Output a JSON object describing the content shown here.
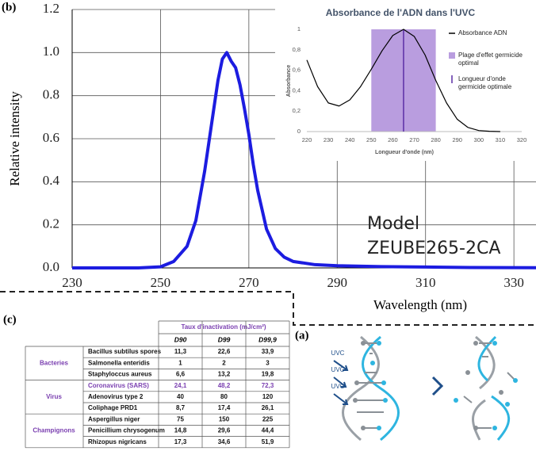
{
  "panels": {
    "b": "(b)",
    "c": "(c)",
    "a": "(a)"
  },
  "chart_data": [
    {
      "type": "line",
      "xlabel": "Wavelength (nm)",
      "ylabel": "Relative intensity",
      "annotation": [
        "Model",
        "ZEUBE265-2CA"
      ],
      "x": [
        230,
        245,
        250,
        253,
        256,
        258,
        260,
        262,
        263,
        264,
        265,
        266,
        267,
        268,
        269,
        270,
        271,
        272,
        274,
        276,
        278,
        280,
        285,
        290,
        300,
        310,
        320,
        335
      ],
      "series": [
        {
          "color": "#1c1ce0",
          "values": [
            0,
            0,
            0.005,
            0.03,
            0.1,
            0.22,
            0.45,
            0.73,
            0.87,
            0.97,
            1.0,
            0.96,
            0.93,
            0.85,
            0.74,
            0.62,
            0.48,
            0.36,
            0.18,
            0.09,
            0.05,
            0.03,
            0.015,
            0.01,
            0.006,
            0.004,
            0.002,
            0.001
          ]
        }
      ],
      "xlim": [
        230,
        335
      ],
      "xticks": [
        230,
        250,
        270,
        290,
        310,
        330
      ],
      "ylim": [
        0,
        1.2
      ],
      "yticks": [
        {
          "value": 0,
          "label": "0.0"
        },
        0.2,
        0.4,
        0.6,
        0.8,
        {
          "value": 1,
          "label": "1.0"
        },
        1.2
      ],
      "grid": true
    },
    {
      "type": "line",
      "title": "Absorbance de l'ADN dans l'UVC",
      "xlabel": "Longueur d'onde (nm)",
      "ylabel": "Absorbance",
      "x": [
        220,
        225,
        230,
        235,
        240,
        245,
        250,
        255,
        260,
        265,
        270,
        275,
        280,
        285,
        290,
        295,
        300,
        305,
        310
      ],
      "series": [
        {
          "name": "Absorbance ADN",
          "color": "#000000",
          "values": [
            0.7,
            0.44,
            0.28,
            0.25,
            0.31,
            0.44,
            0.61,
            0.79,
            0.94,
            1.0,
            0.93,
            0.75,
            0.5,
            0.28,
            0.12,
            0.04,
            0.01,
            0.003,
            0
          ]
        }
      ],
      "bands": [
        {
          "name": "Plage d'effet germicide optimal",
          "range": [
            250,
            280
          ],
          "color": "#b99ddf"
        }
      ],
      "vlines": [
        {
          "name": "Longueur d'onde germicide optimale",
          "value": 265,
          "color": "#5b2ea6"
        }
      ],
      "xlim": [
        220,
        320
      ],
      "xticks": [
        220,
        230,
        240,
        250,
        260,
        270,
        280,
        290,
        300,
        310,
        320
      ],
      "ylim": [
        0,
        1
      ],
      "yticks": [
        0,
        {
          "value": 0.2,
          "label": "0,2"
        },
        {
          "value": 0.4,
          "label": "0,4"
        },
        {
          "value": 0.6,
          "label": "0,6"
        },
        {
          "value": 0.8,
          "label": "0,8"
        },
        1
      ]
    }
  ],
  "table": {
    "header": "Taux d'inactivation (mJ/cm²)",
    "columns": [
      "D90",
      "D99",
      "D99,9"
    ],
    "groups": [
      {
        "name": "Bacteries",
        "rows": [
          {
            "organism": "Bacillus subtilus spores",
            "values": [
              "11,3",
              "22,6",
              "33,9"
            ]
          },
          {
            "organism": "Salmonella enteridis",
            "values": [
              "1",
              "2",
              "3"
            ]
          },
          {
            "organism": "Staphyloccus aureus",
            "values": [
              "6,6",
              "13,2",
              "19,8"
            ]
          }
        ]
      },
      {
        "name": "Virus",
        "rows": [
          {
            "organism": "Coronavirus (SARS)",
            "values": [
              "24,1",
              "48,2",
              "72,3"
            ],
            "color": "#7a3fb0"
          },
          {
            "organism": "Adenovirus type 2",
            "values": [
              "40",
              "80",
              "120"
            ]
          },
          {
            "organism": "Coliphage PRD1",
            "values": [
              "8,7",
              "17,4",
              "26,1"
            ]
          }
        ]
      },
      {
        "name": "Champignons",
        "rows": [
          {
            "organism": "Aspergillus niger",
            "values": [
              "75",
              "150",
              "225"
            ]
          },
          {
            "organism": "Penicillium chrysogenum",
            "values": [
              "14,8",
              "29,6",
              "44,4"
            ]
          },
          {
            "organism": "Rhizopus nigricans",
            "values": [
              "17,3",
              "34,6",
              "51,9"
            ]
          }
        ]
      }
    ]
  },
  "illustration": {
    "labels": [
      "UVC",
      "UVC",
      "UVC"
    ]
  }
}
